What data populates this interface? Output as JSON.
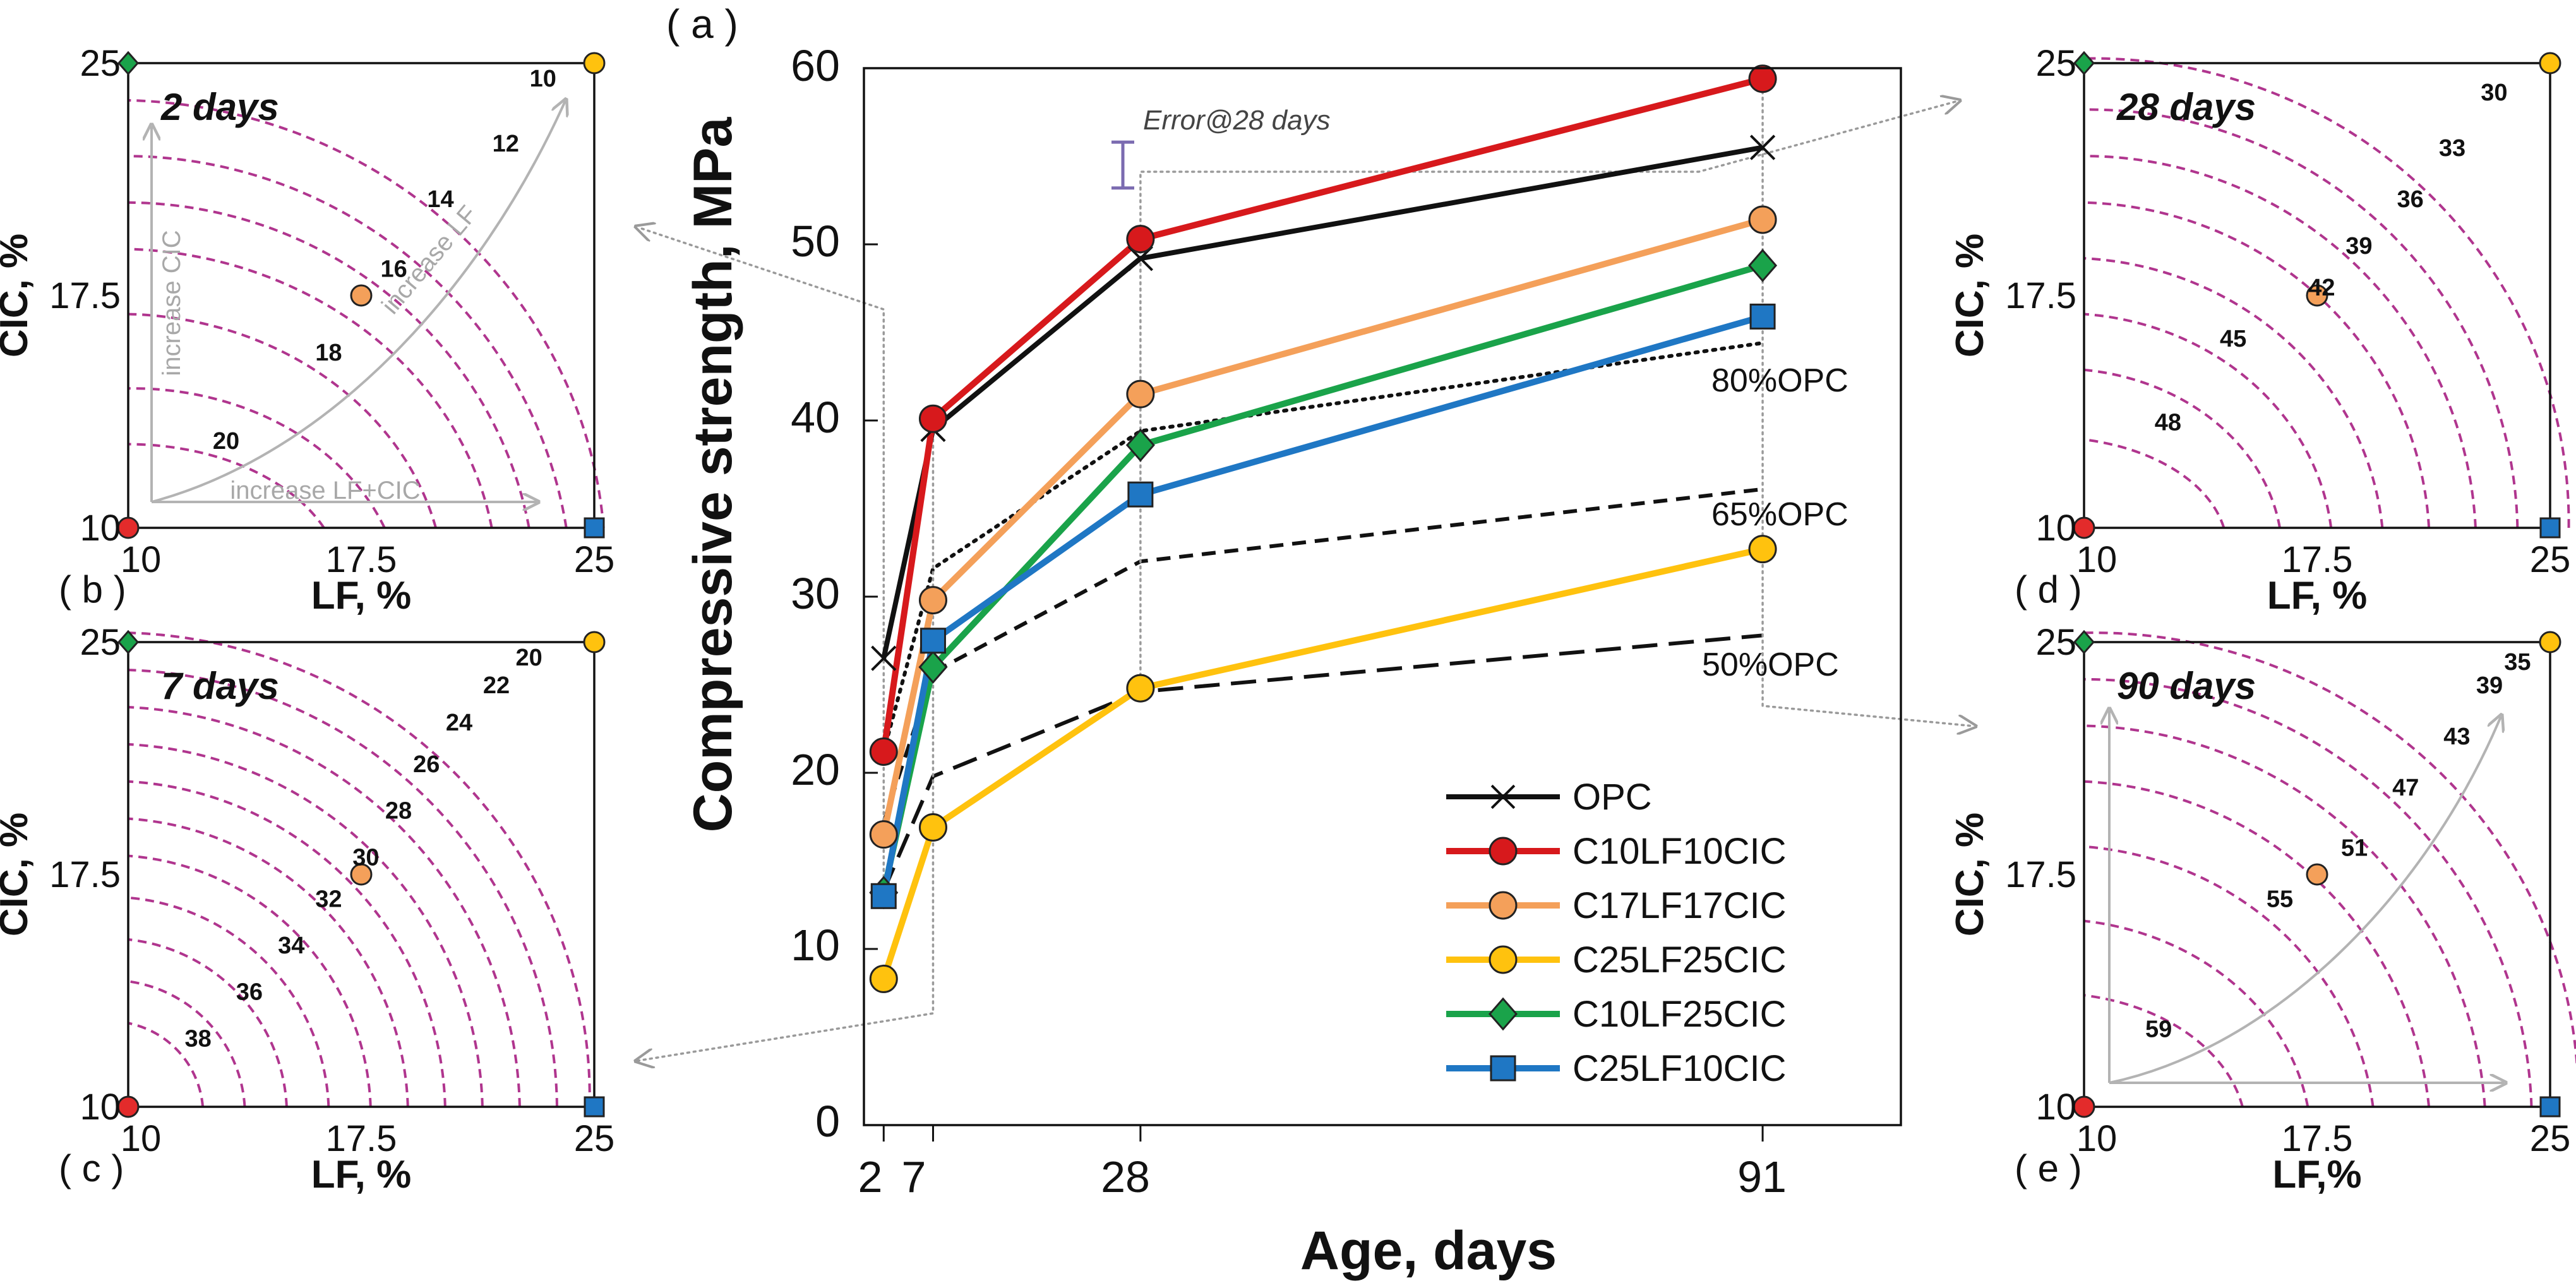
{
  "chart_data": [
    {
      "id": "a",
      "type": "line",
      "panel_label": "( a )",
      "xlabel": "Age, days",
      "ylabel": "Compressive strength, MPa",
      "xticks": [
        "2",
        "7",
        "28",
        "91"
      ],
      "x_values": [
        2,
        7,
        28,
        91
      ],
      "xlim": [
        0,
        105
      ],
      "ylim": [
        0,
        60
      ],
      "yticks": [
        "0",
        "10",
        "20",
        "30",
        "40",
        "50",
        "60"
      ],
      "error_label": "Error@28 days",
      "error_bar_values": [
        53.2,
        55.8
      ],
      "series": [
        {
          "name": "OPC",
          "color": "#111111",
          "marker": "x",
          "values": [
            26.5,
            39.5,
            49.2,
            55.5
          ]
        },
        {
          "name": "C10LF10CIC",
          "color": "#d7191c",
          "marker": "circle",
          "values": [
            21.2,
            40.1,
            50.3,
            59.4
          ]
        },
        {
          "name": "C17LF17CIC",
          "color": "#f4a05a",
          "marker": "circle",
          "values": [
            16.5,
            29.8,
            41.5,
            51.4
          ]
        },
        {
          "name": "C25LF25CIC",
          "color": "#ffc20e",
          "marker": "circle",
          "values": [
            8.3,
            16.9,
            24.8,
            32.7
          ]
        },
        {
          "name": "C10LF25CIC",
          "color": "#1aa34a",
          "marker": "diamond",
          "values": [
            13.2,
            26.0,
            38.6,
            48.8
          ]
        },
        {
          "name": "C25LF10CIC",
          "color": "#1f77c4",
          "marker": "square",
          "values": [
            13.0,
            27.5,
            35.8,
            45.9
          ]
        }
      ],
      "reference_lines": [
        {
          "name": "80%OPC",
          "style": "dotted",
          "values": [
            21.2,
            31.6,
            39.4,
            44.4
          ]
        },
        {
          "name": "65%OPC",
          "style": "dashed",
          "values": [
            17.2,
            25.7,
            32.0,
            36.1
          ]
        },
        {
          "name": "50%OPC",
          "style": "longdash",
          "values": [
            13.3,
            19.8,
            24.6,
            27.8
          ]
        }
      ]
    },
    {
      "id": "b",
      "type": "contour",
      "panel_label": "( b )",
      "title": "2 days",
      "xlabel": "LF, %",
      "ylabel": "CIC, %",
      "xticks": [
        "10",
        "17.5",
        "25"
      ],
      "yticks": [
        "10",
        "17.5",
        "25"
      ],
      "contour_levels": [
        "10",
        "12",
        "14",
        "16",
        "18",
        "20"
      ],
      "arrow_labels": [
        "increase CIC",
        "increase LF+CIC",
        "increase LF"
      ]
    },
    {
      "id": "c",
      "type": "contour",
      "panel_label": "( c )",
      "title": "7 days",
      "xlabel": "LF, %",
      "ylabel": "CIC, %",
      "xticks": [
        "10",
        "17.5",
        "25"
      ],
      "yticks": [
        "10",
        "17.5",
        "25"
      ],
      "contour_levels": [
        "20",
        "22",
        "24",
        "26",
        "28",
        "30",
        "32",
        "34",
        "36",
        "38"
      ]
    },
    {
      "id": "d",
      "type": "contour",
      "panel_label": "( d )",
      "title": "28 days",
      "xlabel": "LF, %",
      "ylabel": "CIC, %",
      "xticks": [
        "10",
        "17.5",
        "25"
      ],
      "yticks": [
        "10",
        "17.5",
        "25"
      ],
      "contour_levels": [
        "30",
        "33",
        "36",
        "39",
        "42",
        "45",
        "48"
      ]
    },
    {
      "id": "e",
      "type": "contour",
      "panel_label": "( e )",
      "title": "90 days",
      "xlabel": "LF,%",
      "ylabel": "CIC, %",
      "xticks": [
        "10",
        "17.5",
        "25"
      ],
      "yticks": [
        "10",
        "17.5",
        "25"
      ],
      "contour_levels": [
        "35",
        "39",
        "43",
        "47",
        "51",
        "55",
        "59"
      ]
    }
  ],
  "colors": {
    "contour": "#b0358e",
    "arrow": "#b3b3b3",
    "error_bar": "#7b6bb0",
    "connector": "#9a9a9a"
  }
}
